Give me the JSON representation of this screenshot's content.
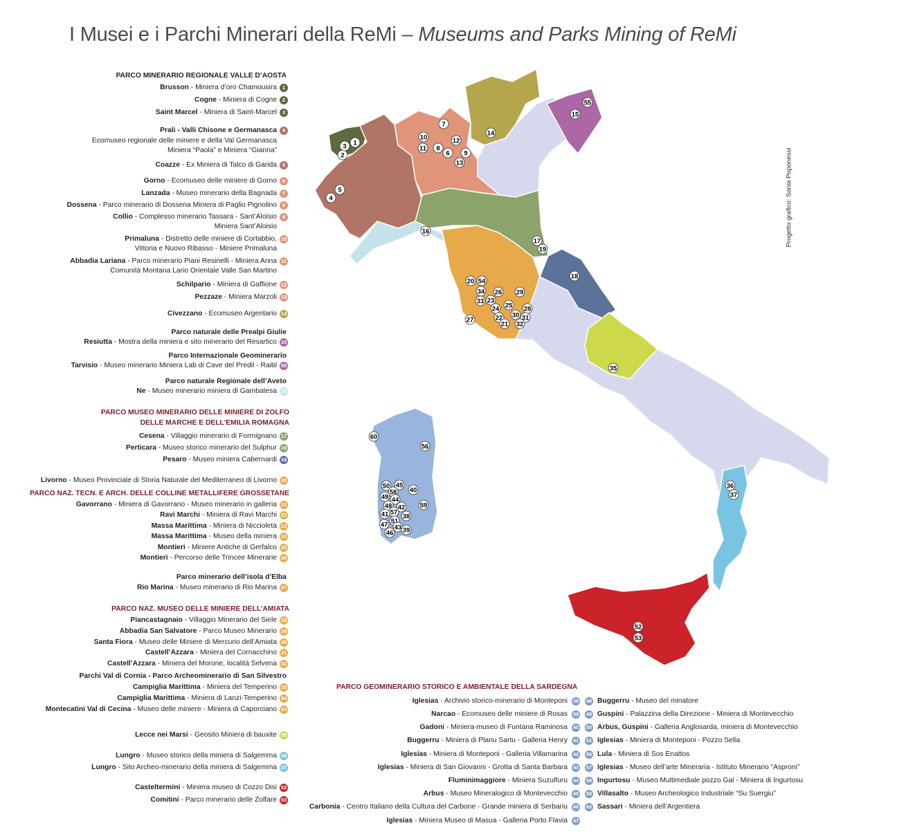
{
  "title": {
    "italian": "I Musei e i Parchi Minerari della ReMi – ",
    "english": "Museums and Parks Mining of ReMi"
  },
  "credit": "Progetto grafico: Sonia Poponessi",
  "colors": {
    "aosta": "#5d6b3e",
    "piemonte": "#b07566",
    "lombardia": "#e0957a",
    "trentino": "#b5a64e",
    "veneto": "#d6d9ee",
    "friuli": "#ad66a6",
    "liguria": "#c4e2ea",
    "emilia": "#8ca46b",
    "toscana": "#e7a94a",
    "marche": "#5b7399",
    "abruzzo": "#cdd94b",
    "sardegna": "#99b5de",
    "calabria": "#79c4e3",
    "sicilia": "#cc2229",
    "other": "#d6d9ee",
    "heading_red": "#7a1f2b"
  },
  "legend": {
    "groups": [
      {
        "titles": [
          "PARCO MINERARIO REGIONALE VALLE D’AOSTA"
        ],
        "title_color": "black",
        "items": [
          {
            "place": "Brusson",
            "desc": "Miniera d’oro Chamousira",
            "num": "1",
            "color": "aosta"
          },
          {
            "place": "Cogne",
            "desc": "Miniera di Cogne",
            "num": "2",
            "color": "aosta"
          },
          {
            "place": "Saint Marcel",
            "desc": "Miniera di Saint-Marcel",
            "num": "3",
            "color": "aosta"
          }
        ]
      },
      {
        "titles": [],
        "items": [
          {
            "place": "Prali - Valli Chisone e Germanasca",
            "desc": "",
            "more": [
              "Ecomuseo regionale delle miniere e della Val Germanasca",
              "Miniera “Paola” e Miniera “Gianna”"
            ],
            "num": "4",
            "color": "piemonte"
          },
          {
            "place": "Coazze",
            "desc": "Ex Miniera di Talco di Garida",
            "num": "5",
            "color": "piemonte"
          }
        ]
      },
      {
        "titles": [],
        "items": [
          {
            "place": "Gorno",
            "desc": "Ecomuseo delle miniere di Gorno",
            "num": "6",
            "color": "lombardia"
          },
          {
            "place": "Lanzada",
            "desc": "Museo minerario della Bagnada",
            "num": "7",
            "color": "lombardia"
          },
          {
            "place": "Dossena",
            "desc": "Parco minerario di Dossena Miniera di Paglio Pignolino",
            "num": "8",
            "color": "lombardia"
          },
          {
            "place": "Collio",
            "desc": "Complesso minerario Tassara - Sant’Aloisio",
            "more": [
              "Miniera Sant’Aloisio"
            ],
            "num": "9",
            "color": "lombardia"
          },
          {
            "place": "Primaluna",
            "desc": "Distretto delle miniere di Cortabbio,",
            "more": [
              "Vittoria e Nuovo Ribasso - Miniere Primaluna"
            ],
            "num": "10",
            "color": "lombardia"
          },
          {
            "place": "Abbadia Lariana",
            "desc": "Parco minerario Piani Resinelli - Miniera Anna",
            "more": [
              "Comunità Montana Lario Orientale Valle San Martino"
            ],
            "num": "11",
            "color": "lombardia"
          },
          {
            "place": "Schilpario",
            "desc": "Miniera di Gaffione",
            "num": "12",
            "color": "lombardia"
          },
          {
            "place": "Pezzaze",
            "desc": "Miniera Marzoli",
            "num": "13",
            "color": "lombardia"
          }
        ]
      },
      {
        "titles": [],
        "items": [
          {
            "place": "Civezzano",
            "desc": "Ecomuseo Argentario",
            "num": "14",
            "color": "trentino"
          }
        ]
      },
      {
        "titles": [
          "Parco naturale delle Prealpi Giulie"
        ],
        "title_color": "black",
        "items": [
          {
            "place": "Resiutta",
            "desc": "Mostra della miniera e sito minerario del Resartico",
            "num": "15",
            "color": "friuli"
          }
        ]
      },
      {
        "titles": [
          "Parco Internazionale Geominerario"
        ],
        "title_color": "black",
        "items": [
          {
            "place": "Tarvisio",
            "desc": "Museo minerario Miniera Lab di Cave del Predil - Raibl",
            "num": "55",
            "color": "friuli"
          }
        ]
      },
      {
        "titles": [
          "Parco naturale Regionale dell’Aveto"
        ],
        "title_color": "black",
        "items": [
          {
            "place": "Ne",
            "desc": "Museo minerario miniera di Gambatesa",
            "num": "16",
            "color": "liguria"
          }
        ]
      },
      {
        "titles": [
          "PARCO MUSEO MINERARIO DELLE MINIERE DI ZOLFO",
          "DELLE MARCHE E DELL'EMILIA ROMAGNA"
        ],
        "title_color": "red",
        "items": [
          {
            "place": "Cesena",
            "desc": "Villaggio minerario di Formignano",
            "num": "17",
            "color": "emilia"
          },
          {
            "place": "Perticara",
            "desc": "Museo storico minerario del Sulphur",
            "num": "19",
            "color": "emilia"
          },
          {
            "place": "Pesaro",
            "desc": "Museo miniera Cabernardi",
            "num": "18",
            "color": "marche"
          }
        ]
      },
      {
        "titles": [],
        "items": [
          {
            "place": "Livorno",
            "desc": "Museo Provinciale di Storia Naturale del Mediterraneo di Livorno",
            "num": "20",
            "color": "toscana"
          }
        ]
      },
      {
        "titles": [
          "PARCO NAZ. TECN. E ARCH. DELLE COLLINE METALLIFERE GROSSETANE"
        ],
        "title_color": "red",
        "items": [
          {
            "place": "Gavorrano",
            "desc": "Miniera di Gavorrano - Museo minerario in galleria",
            "num": "21",
            "color": "toscana"
          },
          {
            "place": "Ravi Marchi",
            "desc": "Miniera di Ravi Marchi",
            "num": "22",
            "color": "toscana"
          },
          {
            "place": "Massa Marittima",
            "desc": "Miniera di Niccioleta",
            "num": "23",
            "color": "toscana"
          },
          {
            "place": "Massa Marittima",
            "desc": "Museo della miniera",
            "num": "24",
            "color": "toscana"
          },
          {
            "place": "Montieri",
            "desc": "Miniere Antiche di Gerfalco",
            "num": "25",
            "color": "toscana"
          },
          {
            "place": "Montieri",
            "desc": "Percorso delle Trincee Minerarie",
            "num": "26",
            "color": "toscana"
          }
        ]
      },
      {
        "titles": [
          "Parco minerario dell’isola d’Elba"
        ],
        "title_color": "black",
        "items": [
          {
            "place": "Rio Marina",
            "desc": "Museo minerario di Rio Marina",
            "num": "27",
            "color": "toscana"
          }
        ]
      },
      {
        "titles": [
          "PARCO NAZ. MUSEO DELLE MINIERE DELL’AMIATA"
        ],
        "title_color": "red",
        "items": [
          {
            "place": "Piancastagnaio",
            "desc": "Villaggio Minerario del Siele",
            "num": "28",
            "color": "toscana"
          },
          {
            "place": "Abbadia San Salvatore",
            "desc": "Parco Museo Minerario",
            "num": "29",
            "color": "toscana"
          },
          {
            "place": "Santa Fiora",
            "desc": "Museo delle Miniere di Mercurio dell’Amiata",
            "num": "30",
            "color": "toscana"
          },
          {
            "place": "Castell’Azzara",
            "desc": "Miniera del Cornacchino",
            "num": "31",
            "color": "toscana"
          },
          {
            "place": "Castell’Azzara",
            "desc": "Miniera del Morone, località Selvena",
            "num": "32",
            "color": "toscana"
          }
        ]
      },
      {
        "titles": [
          "Parchi Val di Cornia - Parco Archeominerario di San Silvestro"
        ],
        "title_color": "black",
        "items": [
          {
            "place": "Campiglia Marittima",
            "desc": "Miniera del Temperino",
            "num": "33",
            "color": "toscana"
          },
          {
            "place": "Campiglia Marittima",
            "desc": "Miniera di Lanzi-Temperino",
            "num": "34",
            "color": "toscana"
          },
          {
            "place": "Montecatini Val di Cecina",
            "desc": "Museo delle miniere - Miniera di Caporciano",
            "num": "54",
            "color": "toscana"
          }
        ]
      },
      {
        "titles": [],
        "items": [
          {
            "place": "Lecce nei Marsi",
            "desc": "Geosito Miniera di bauxite",
            "num": "35",
            "color": "abruzzo"
          }
        ]
      },
      {
        "titles": [],
        "items": [
          {
            "place": "Lungro",
            "desc": "Museo storico della miniera di Salgemma",
            "num": "36",
            "color": "calabria"
          },
          {
            "place": "Lungro",
            "desc": "Sito Archeo-minerario della miniera di Salgemma",
            "num": "37",
            "color": "calabria"
          }
        ]
      },
      {
        "titles": [],
        "items": [
          {
            "place": "Casteltermini",
            "desc": "Miniera museo di Cozzo Disi",
            "num": "52",
            "color": "sicilia"
          },
          {
            "place": "Comitini",
            "desc": "Parco minerario delle Zolfare",
            "num": "53",
            "color": "sicilia"
          }
        ]
      }
    ]
  },
  "sardegna": {
    "title": "PARCO GEOMINERARIO STORICO E AMBIENTALE DELLA SARDEGNA",
    "left": [
      {
        "place": "Iglesias",
        "desc": "Archivio storico-minerario di Monteponi",
        "num": "38"
      },
      {
        "place": "Narcao",
        "desc": "Ecomuseo delle miniere di Rosas",
        "num": "39"
      },
      {
        "place": "Gadoni",
        "desc": "Miniera-museo di Funtana Raminosa",
        "num": "40"
      },
      {
        "place": "Buggerru",
        "desc": "Miniera di Planu Sartu - Galleria Henry",
        "num": "41"
      },
      {
        "place": "Iglesias",
        "desc": "Miniera di Monteponi - Galleria Villamarina",
        "num": "42"
      },
      {
        "place": "Iglesias",
        "desc": "Miniera di San Giovanni - Grotta di Santa Barbara",
        "num": "43"
      },
      {
        "place": "Fluminimaggiore",
        "desc": "Miniera Suzulfuru",
        "num": "44"
      },
      {
        "place": "Arbus",
        "desc": "Museo Mineralogico di Montevecchio",
        "num": "45"
      },
      {
        "place": "Carbonia",
        "desc": "Centro Italiano della Cultura del Carbone - Grande miniera di Serbariu",
        "num": "46"
      },
      {
        "place": "Iglesias",
        "desc": "Miniera Museo di Masua - Galleria Porto Flavia",
        "num": "47"
      }
    ],
    "right": [
      {
        "place": "Buggerru",
        "desc": "Museo del minatore",
        "num": "48"
      },
      {
        "place": "Guspini",
        "desc": "Palazzina della Direzione - Miniera di Montevecchio",
        "num": "49"
      },
      {
        "place": "Arbus, Guspini",
        "desc": "Galleria Anglosarda, miniera di Montevecchio",
        "num": "50"
      },
      {
        "place": "Iglesias",
        "desc": "Miniera di Monteponi - Pozzo Sella",
        "num": "51"
      },
      {
        "place": "Lula",
        "desc": "Miniera di Sos Enattos",
        "num": "56"
      },
      {
        "place": "Iglesias",
        "desc": "Museo dell’arte Mineraria - Istituto Minerario “Asproni”",
        "num": "57"
      },
      {
        "place": "Ingurtosu",
        "desc": "Museo Multimediale pozzo Gal - Miniera di Ingurtosu",
        "num": "58"
      },
      {
        "place": "Villasalto",
        "desc": "Museo Archeologico Industriale “Su Suergiu”",
        "num": "59"
      },
      {
        "place": "Sassari",
        "desc": "Miniera dell’Argentiera",
        "num": "60"
      }
    ]
  },
  "map": {
    "regions": [
      "aosta",
      "piemonte",
      "lombardia",
      "trentino",
      "veneto",
      "friuli",
      "liguria",
      "emilia",
      "toscana",
      "marche",
      "other",
      "abruzzo",
      "calabria",
      "sicilia",
      "sardegna"
    ],
    "markers": [
      "1",
      "2",
      "3",
      "4",
      "5",
      "6",
      "7",
      "8",
      "9",
      "10",
      "11",
      "12",
      "13",
      "14",
      "15",
      "55",
      "16",
      "17",
      "19",
      "18",
      "20",
      "54",
      "34",
      "33",
      "23",
      "26",
      "29",
      "24",
      "25",
      "28",
      "22",
      "30",
      "31",
      "21",
      "32",
      "27",
      "35",
      "36",
      "37",
      "52",
      "53",
      "60",
      "56",
      "50",
      "45",
      "58",
      "40",
      "49",
      "44",
      "48",
      "42",
      "59",
      "57",
      "41",
      "38",
      "51",
      "47",
      "43",
      "39",
      "46"
    ]
  }
}
